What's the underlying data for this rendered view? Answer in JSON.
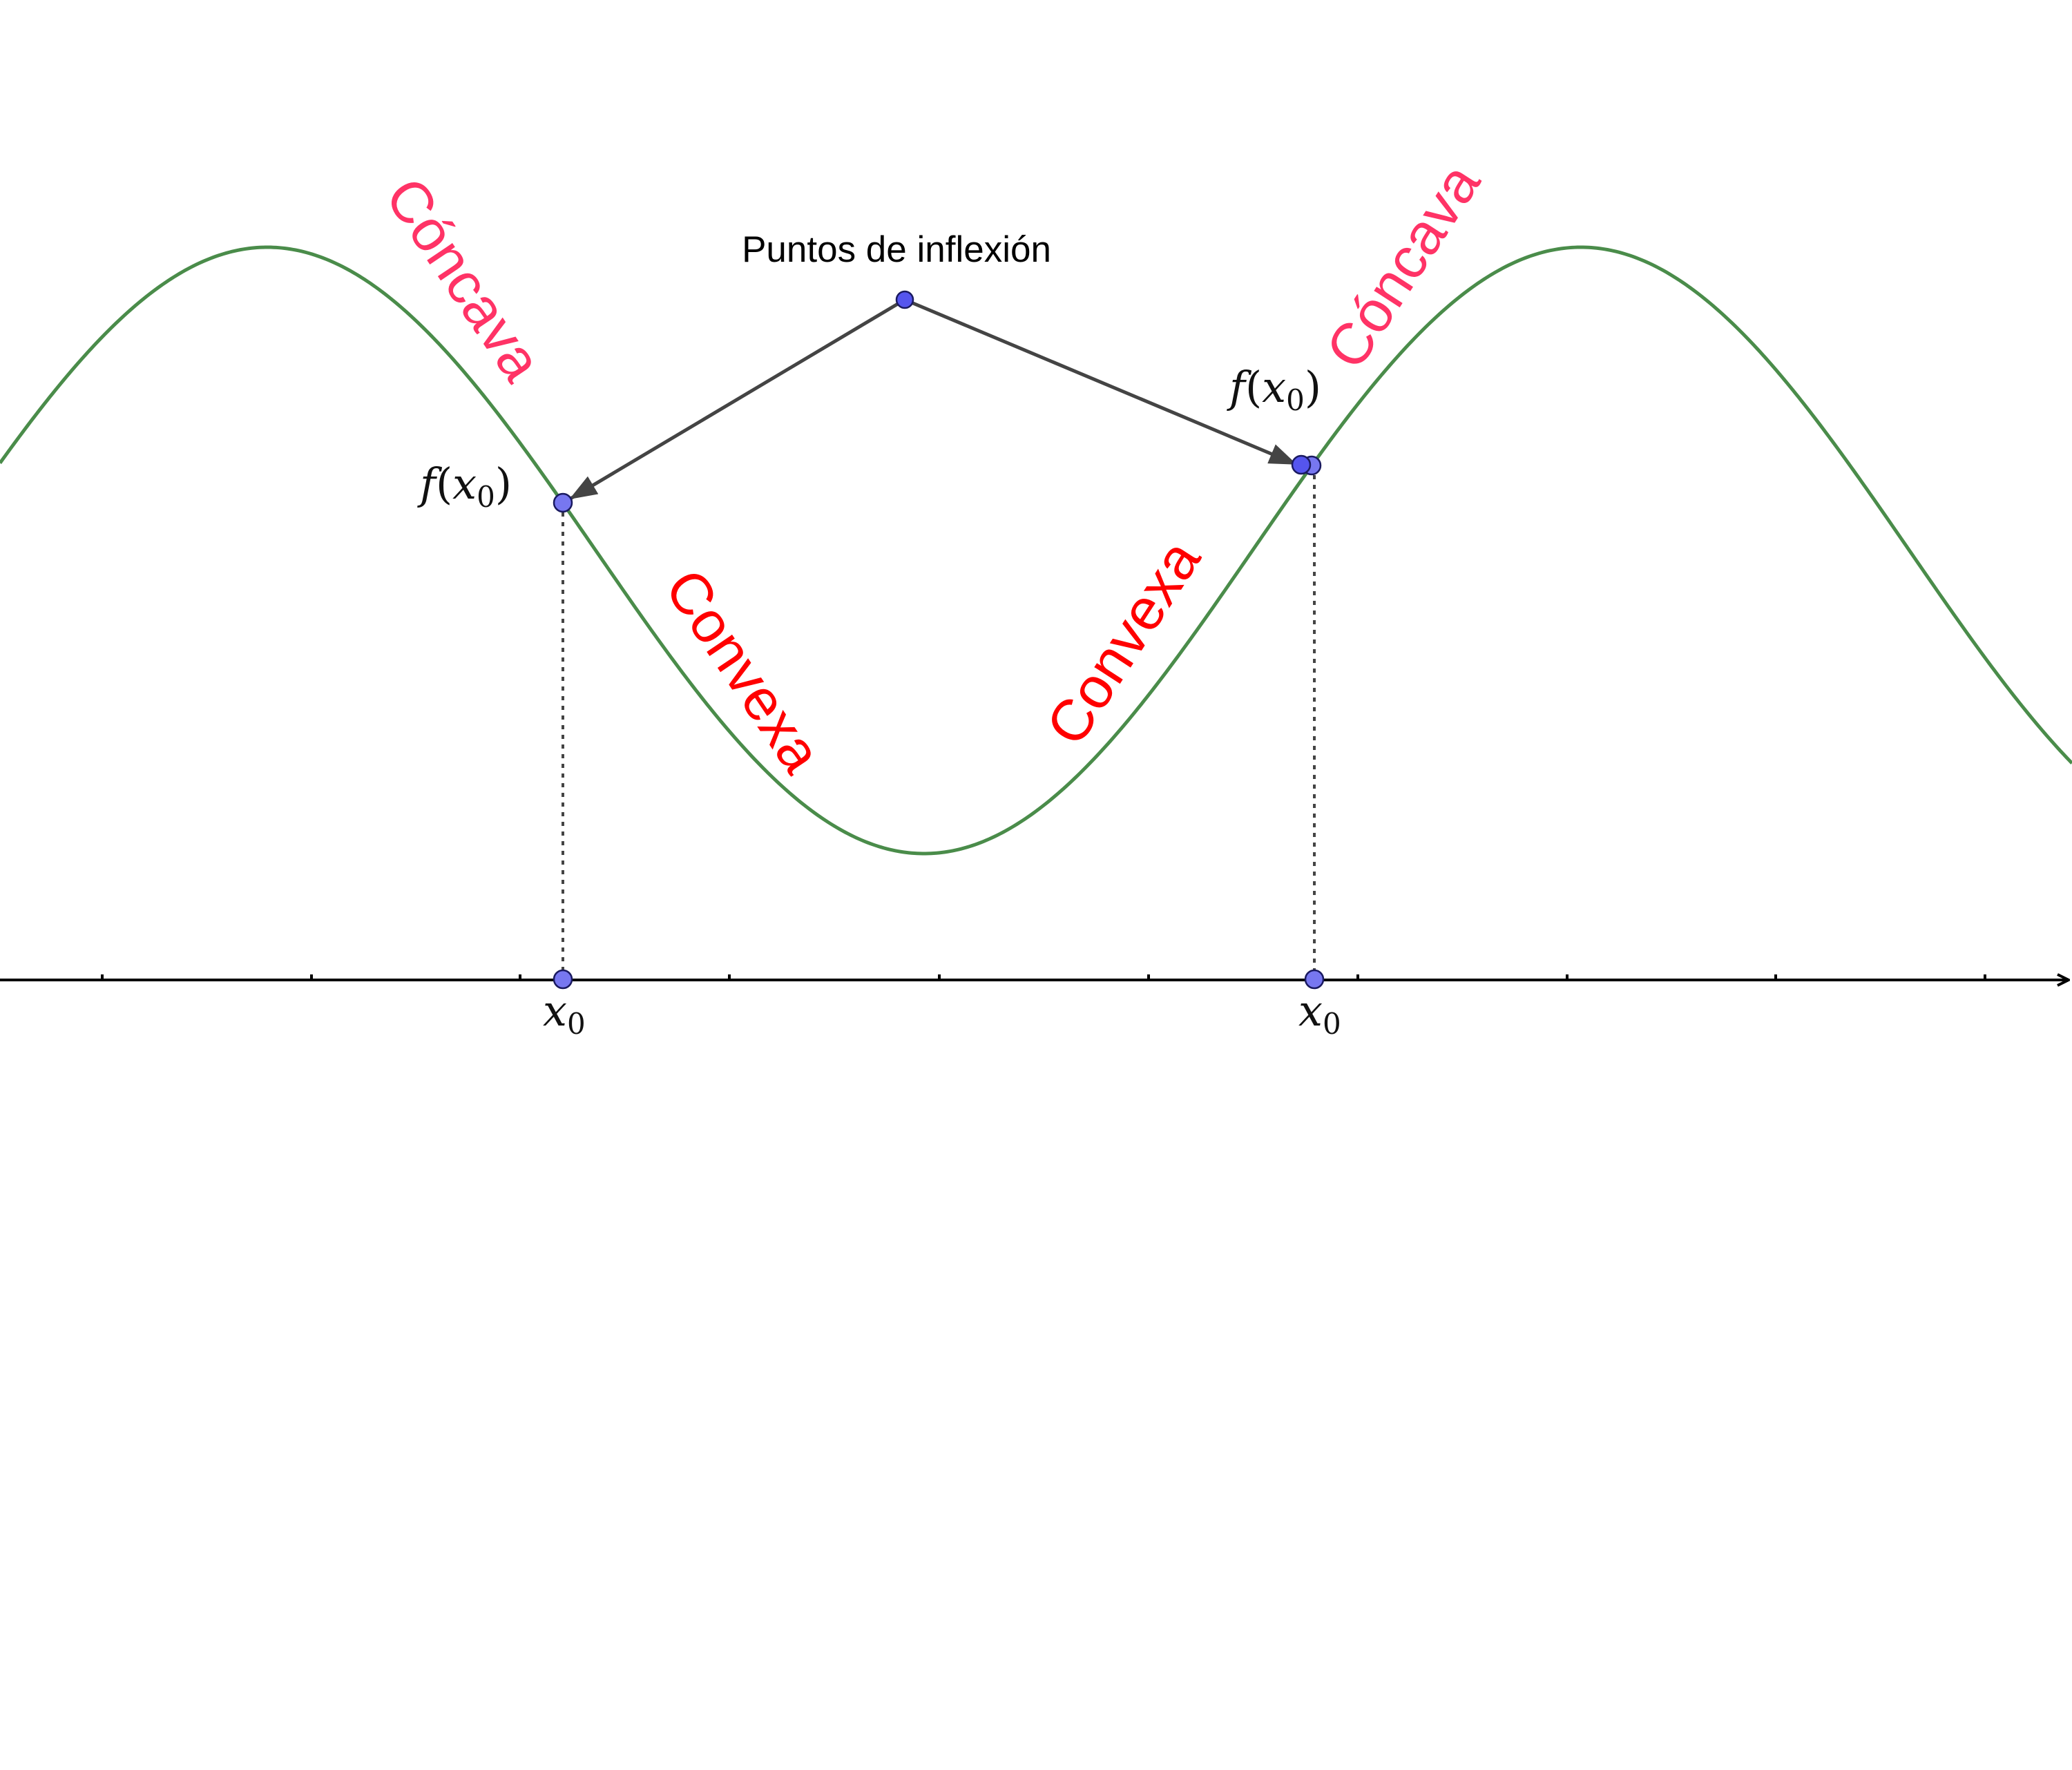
{
  "diagram": {
    "caption": "Puntos de inflexión",
    "colors": {
      "curve": "#4a8c4a",
      "axis": "#000000",
      "arrow": "#444444",
      "point_fill": "#6a6af0",
      "point_stroke": "#1a1a60",
      "concave_label": "#ff3366",
      "convex_label": "#ff0000",
      "guide": "#444444"
    },
    "regions": [
      {
        "id": "concave-left",
        "label": "Cóncava"
      },
      {
        "id": "convex-left",
        "label": "Convexa"
      },
      {
        "id": "convex-right",
        "label": "Convexa"
      },
      {
        "id": "concave-right",
        "label": "Cóncava"
      }
    ],
    "inflection_points": [
      {
        "id": "left",
        "value_label": {
          "f": "f",
          "open": "(",
          "x": "x",
          "sub": "0",
          "close": ")"
        },
        "axis_label": {
          "x": "x",
          "sub": "0"
        }
      },
      {
        "id": "right",
        "value_label": {
          "f": "f",
          "open": "(",
          "x": "x",
          "sub": "0",
          "close": ")"
        },
        "axis_label": {
          "x": "x",
          "sub": "0"
        }
      }
    ]
  }
}
